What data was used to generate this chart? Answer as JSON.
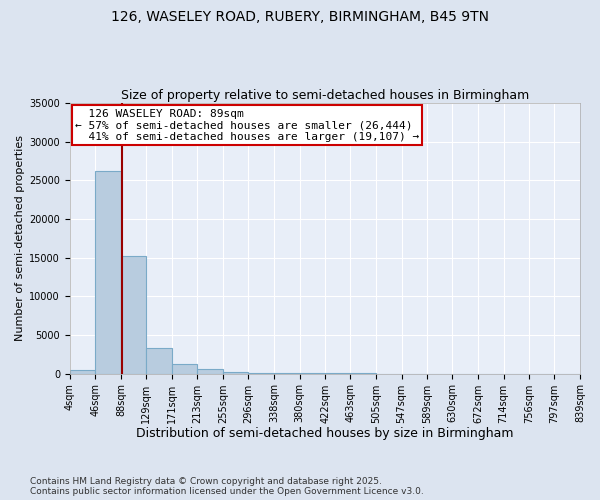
{
  "title1": "126, WASELEY ROAD, RUBERY, BIRMINGHAM, B45 9TN",
  "title2": "Size of property relative to semi-detached houses in Birmingham",
  "xlabel": "Distribution of semi-detached houses by size in Birmingham",
  "ylabel": "Number of semi-detached properties",
  "footnote1": "Contains HM Land Registry data © Crown copyright and database right 2025.",
  "footnote2": "Contains public sector information licensed under the Open Government Licence v3.0.",
  "property_size": 89,
  "property_label": "126 WASELEY ROAD: 89sqm",
  "pct_smaller": 57,
  "pct_larger": 41,
  "count_smaller": 26444,
  "count_larger": 19107,
  "bin_edges": [
    4,
    46,
    88,
    129,
    171,
    213,
    255,
    296,
    338,
    380,
    422,
    463,
    505,
    547,
    589,
    630,
    672,
    714,
    756,
    797,
    839
  ],
  "bin_counts": [
    500,
    26200,
    15200,
    3300,
    1200,
    550,
    200,
    80,
    50,
    30,
    20,
    15,
    10,
    8,
    5,
    4,
    3,
    2,
    2,
    1
  ],
  "bar_color": "#b8ccdf",
  "bar_edge_color": "#7aaac8",
  "bar_linewidth": 0.8,
  "vline_color": "#990000",
  "vline_linewidth": 1.5,
  "annotation_box_facecolor": "#ffffff",
  "annotation_box_edgecolor": "#cc0000",
  "background_color": "#dce4f0",
  "plot_bg_color": "#e8eef8",
  "grid_color": "#ffffff",
  "ylim": [
    0,
    35000
  ],
  "yticks": [
    0,
    5000,
    10000,
    15000,
    20000,
    25000,
    30000,
    35000
  ],
  "tick_labels": [
    "4sqm",
    "46sqm",
    "88sqm",
    "129sqm",
    "171sqm",
    "213sqm",
    "255sqm",
    "296sqm",
    "338sqm",
    "380sqm",
    "422sqm",
    "463sqm",
    "505sqm",
    "547sqm",
    "589sqm",
    "630sqm",
    "672sqm",
    "714sqm",
    "756sqm",
    "797sqm",
    "839sqm"
  ],
  "title1_fontsize": 10,
  "title2_fontsize": 9,
  "xlabel_fontsize": 9,
  "ylabel_fontsize": 8,
  "tick_fontsize": 7,
  "annotation_fontsize": 8,
  "footnote_fontsize": 6.5
}
